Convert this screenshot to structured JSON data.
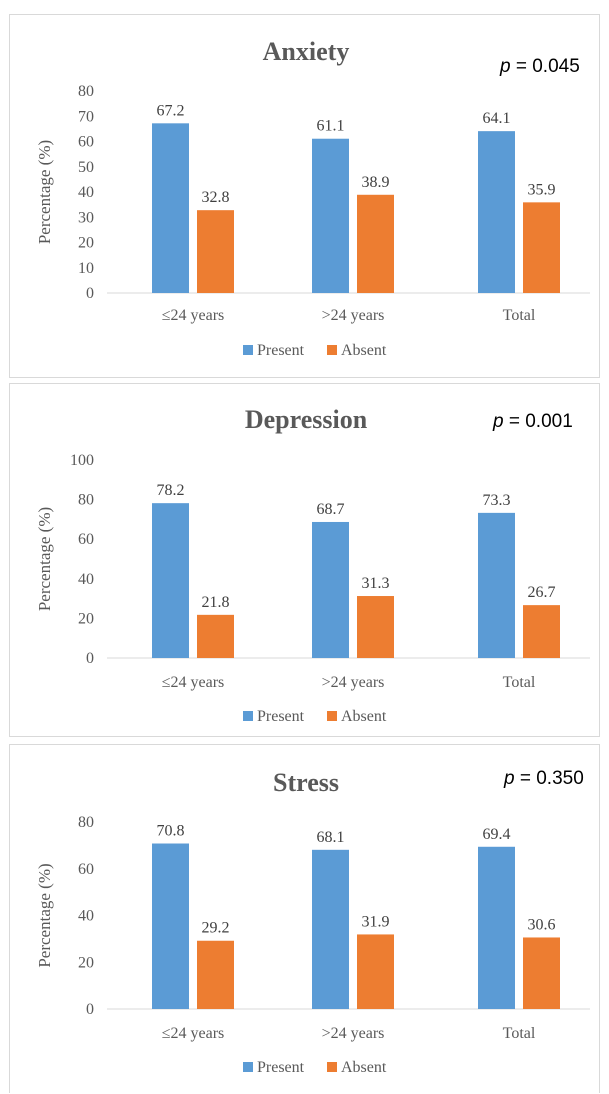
{
  "chart_data": [
    {
      "type": "bar",
      "title": "Anxiety",
      "annotation": {
        "p_symbol": "p",
        "p_rest": " = 0.045"
      },
      "ylabel": "Percentage (%)",
      "categories": [
        "≤24 years",
        ">24 years",
        "Total"
      ],
      "series": [
        {
          "name": "Present",
          "color": "#5b9bd5",
          "values": [
            67.2,
            61.1,
            64.1
          ]
        },
        {
          "name": "Absent",
          "color": "#ed7d31",
          "values": [
            32.8,
            38.9,
            35.9
          ]
        }
      ],
      "ylim": [
        0,
        80
      ],
      "yticks": [
        0,
        10,
        20,
        30,
        40,
        50,
        60,
        70,
        80
      ],
      "legend": "bottom",
      "grid": false
    },
    {
      "type": "bar",
      "title": "Depression",
      "annotation": {
        "p_symbol": "p",
        "p_rest": " = 0.001"
      },
      "ylabel": "Percentage (%)",
      "categories": [
        "≤24 years",
        ">24 years",
        "Total"
      ],
      "series": [
        {
          "name": "Present",
          "color": "#5b9bd5",
          "values": [
            78.2,
            68.7,
            73.3
          ]
        },
        {
          "name": "Absent",
          "color": "#ed7d31",
          "values": [
            21.8,
            31.3,
            26.7
          ]
        }
      ],
      "ylim": [
        0,
        100
      ],
      "yticks": [
        0,
        20,
        40,
        60,
        80,
        100
      ],
      "legend": "bottom",
      "grid": false
    },
    {
      "type": "bar",
      "title": "Stress",
      "annotation": {
        "p_symbol": "p",
        "p_rest": " = 0.350"
      },
      "ylabel": "Percentage (%)",
      "categories": [
        "≤24 years",
        ">24 years",
        "Total"
      ],
      "series": [
        {
          "name": "Present",
          "color": "#5b9bd5",
          "values": [
            70.8,
            68.1,
            69.4
          ]
        },
        {
          "name": "Absent",
          "color": "#ed7d31",
          "values": [
            29.2,
            31.9,
            30.6
          ]
        }
      ],
      "ylim": [
        0,
        80
      ],
      "yticks": [
        0,
        20,
        40,
        60,
        80
      ],
      "legend": "bottom",
      "grid": false
    }
  ]
}
